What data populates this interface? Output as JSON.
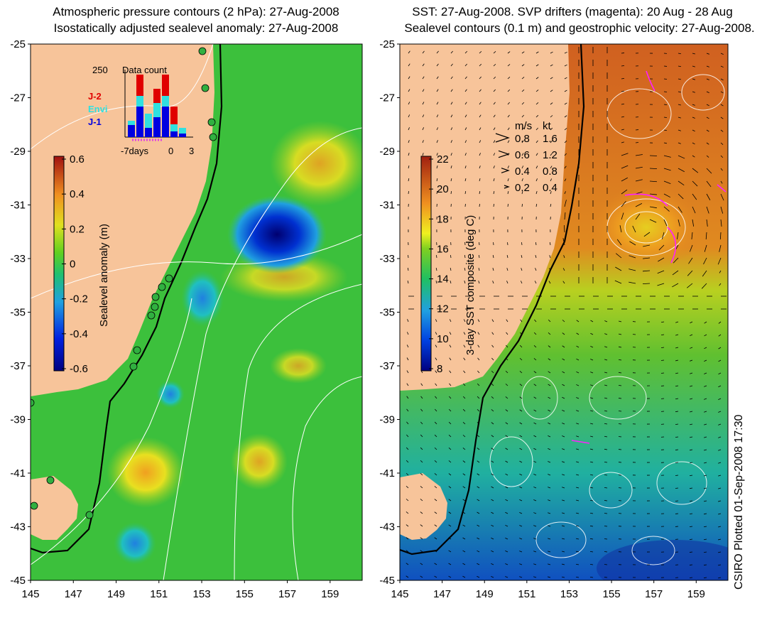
{
  "left_panel": {
    "title_line1": "Atmospheric pressure contours (2 hPa): 27-Aug-2008",
    "title_line2": "Isostatically adjusted sealevel anomaly: 27-Aug-2008",
    "y_ticks": [
      "-25",
      "-27",
      "-29",
      "-31",
      "-33",
      "-35",
      "-37",
      "-39",
      "-41",
      "-43",
      "-45"
    ],
    "x_ticks": [
      "145",
      "147",
      "149",
      "151",
      "153",
      "155",
      "157",
      "159"
    ],
    "colorbar": {
      "label": "Sealevel anomaly (m)",
      "ticks": [
        "0.6",
        "0.4",
        "0.2",
        "0",
        "-0.2",
        "-0.4",
        "-0.6"
      ],
      "range": [
        -0.6,
        0.6
      ]
    },
    "inset": {
      "title": "Data count",
      "y_label": "250",
      "legend": [
        {
          "name": "J-2",
          "color": "#e00000"
        },
        {
          "name": "Envi",
          "color": "#30e0e0"
        },
        {
          "name": "J-1",
          "color": "#0000e0"
        }
      ],
      "x_labels": [
        "-7days",
        "0",
        "3"
      ]
    }
  },
  "right_panel": {
    "title_line1": "SST: 27-Aug-2008. SVP drifters (magenta): 20 Aug - 28 Aug",
    "title_line2": "Sealevel contours (0.1 m) and geostrophic velocity: 27-Aug-2008.",
    "y_ticks": [
      "-25",
      "-27",
      "-29",
      "-31",
      "-33",
      "-35",
      "-37",
      "-39",
      "-41",
      "-43",
      "-45"
    ],
    "x_ticks": [
      "145",
      "147",
      "149",
      "151",
      "153",
      "155",
      "157",
      "159"
    ],
    "colorbar": {
      "label": "3-day SST composite (deg C)",
      "ticks": [
        "22",
        "20",
        "18",
        "16",
        "14",
        "12",
        "10",
        "8"
      ],
      "range": [
        8,
        22
      ]
    },
    "velocity_key": {
      "header_ms": "m/s",
      "header_kt": "kt",
      "rows": [
        {
          "ms": "0.8",
          "kt": "1.6"
        },
        {
          "ms": "0.6",
          "kt": "1.2"
        },
        {
          "ms": "0.4",
          "kt": "0.8"
        },
        {
          "ms": "0.2",
          "kt": "0.4"
        }
      ]
    }
  },
  "credit": "CSIRO Plotted 01-Sep-2008 17:30",
  "colors": {
    "land": "#f7c49a",
    "ssh_mid": "#30c030",
    "sst_warm": "#e07020"
  }
}
